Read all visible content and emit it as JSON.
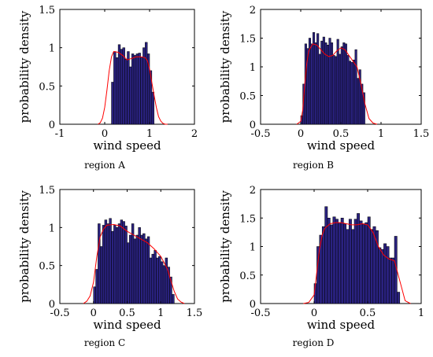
{
  "chart_data": [
    {
      "type": "bar",
      "caption": "region A",
      "xlabel": "wind speed",
      "ylabel": "probability density",
      "xlim": [
        -1,
        2
      ],
      "ylim": [
        0,
        1.5
      ],
      "xticks": [
        "-1",
        "0",
        "1",
        "2"
      ],
      "yticks": [
        "0",
        "0.5",
        "1",
        "1.5"
      ],
      "grid": false,
      "bar_color": "#2a2280",
      "curve_color": "#ff0000",
      "bin_edges": [
        0.15,
        0.2,
        0.25,
        0.3,
        0.35,
        0.4,
        0.45,
        0.5,
        0.55,
        0.6,
        0.65,
        0.7,
        0.75,
        0.8,
        0.85,
        0.9,
        0.95,
        1.0,
        1.05,
        1.1
      ],
      "values": [
        0.55,
        0.95,
        0.87,
        1.04,
        0.98,
        1.0,
        0.85,
        0.95,
        0.75,
        0.92,
        0.9,
        0.92,
        0.93,
        0.88,
        1.0,
        1.07,
        0.92,
        0.7,
        0.42
      ],
      "curve": {
        "x": [
          -0.15,
          -0.1,
          -0.05,
          0.0,
          0.05,
          0.1,
          0.15,
          0.2,
          0.3,
          0.4,
          0.5,
          0.6,
          0.7,
          0.8,
          0.9,
          0.95,
          1.0,
          1.05,
          1.1,
          1.15,
          1.2,
          1.25,
          1.3,
          1.35,
          1.4
        ],
        "y": [
          0.0,
          0.02,
          0.08,
          0.22,
          0.45,
          0.7,
          0.88,
          0.95,
          0.94,
          0.9,
          0.84,
          0.86,
          0.88,
          0.88,
          0.87,
          0.83,
          0.72,
          0.55,
          0.38,
          0.22,
          0.1,
          0.04,
          0.01,
          0.0,
          0.0
        ]
      }
    },
    {
      "type": "bar",
      "caption": "region B",
      "xlabel": "wind speed",
      "ylabel": "probability density",
      "xlim": [
        -0.5,
        1.5
      ],
      "ylim": [
        0,
        2
      ],
      "xticks": [
        "-0.5",
        "0",
        "0.5",
        "1",
        "1.5"
      ],
      "yticks": [
        "0",
        "0.5",
        "1",
        "1.5",
        "2"
      ],
      "grid": false,
      "bar_color": "#2a2280",
      "curve_color": "#ff0000",
      "bin_edges": [
        0.0,
        0.025,
        0.05,
        0.075,
        0.1,
        0.125,
        0.15,
        0.175,
        0.2,
        0.225,
        0.25,
        0.275,
        0.3,
        0.325,
        0.35,
        0.375,
        0.4,
        0.425,
        0.45,
        0.475,
        0.5,
        0.525,
        0.55,
        0.575,
        0.6,
        0.625,
        0.65,
        0.675,
        0.7,
        0.725,
        0.75,
        0.775,
        0.8
      ],
      "values": [
        0.15,
        0.7,
        1.4,
        1.32,
        1.5,
        1.4,
        1.6,
        1.42,
        1.58,
        1.22,
        1.45,
        1.52,
        1.42,
        1.38,
        1.5,
        1.42,
        1.2,
        1.18,
        1.48,
        1.22,
        1.35,
        1.42,
        1.4,
        1.2,
        1.1,
        1.08,
        1.12,
        1.3,
        0.8,
        0.95,
        0.7,
        0.55
      ],
      "curve": {
        "x": [
          -0.05,
          0.0,
          0.025,
          0.05,
          0.075,
          0.1,
          0.15,
          0.2,
          0.25,
          0.3,
          0.35,
          0.4,
          0.45,
          0.5,
          0.55,
          0.6,
          0.65,
          0.7,
          0.75,
          0.8,
          0.85,
          0.9,
          0.95
        ],
        "y": [
          0.0,
          0.05,
          0.25,
          0.7,
          1.05,
          1.28,
          1.4,
          1.38,
          1.3,
          1.22,
          1.18,
          1.2,
          1.28,
          1.33,
          1.3,
          1.2,
          1.1,
          1.0,
          0.7,
          0.35,
          0.1,
          0.02,
          0.0
        ]
      }
    },
    {
      "type": "bar",
      "caption": "region C",
      "xlabel": "wind speed",
      "ylabel": "probability density",
      "xlim": [
        -0.5,
        1.5
      ],
      "ylim": [
        0,
        1.5
      ],
      "xticks": [
        "-0.5",
        "0",
        "0.5",
        "1",
        "1.5"
      ],
      "yticks": [
        "0",
        "0.5",
        "1",
        "1.5"
      ],
      "grid": false,
      "bar_color": "#2a2280",
      "curve_color": "#ff0000",
      "bin_edges": [
        0.0,
        0.033,
        0.066,
        0.1,
        0.133,
        0.166,
        0.2,
        0.233,
        0.266,
        0.3,
        0.333,
        0.366,
        0.4,
        0.433,
        0.466,
        0.5,
        0.533,
        0.566,
        0.6,
        0.633,
        0.666,
        0.7,
        0.733,
        0.766,
        0.8,
        0.833,
        0.866,
        0.9,
        0.933,
        0.966,
        1.0,
        1.033,
        1.066,
        1.1,
        1.133,
        1.166,
        1.2
      ],
      "values": [
        0.22,
        0.45,
        1.05,
        0.75,
        1.03,
        1.1,
        1.05,
        1.12,
        0.95,
        1.03,
        1.0,
        1.05,
        1.1,
        1.08,
        1.02,
        0.8,
        0.9,
        1.05,
        0.85,
        0.9,
        1.0,
        0.9,
        0.92,
        0.85,
        0.88,
        0.6,
        0.65,
        0.7,
        0.6,
        0.62,
        0.55,
        0.5,
        0.6,
        0.48,
        0.35,
        0.12
      ],
      "curve": {
        "x": [
          -0.15,
          -0.1,
          -0.05,
          0.0,
          0.05,
          0.1,
          0.15,
          0.2,
          0.3,
          0.4,
          0.5,
          0.6,
          0.7,
          0.8,
          0.9,
          1.0,
          1.1,
          1.15,
          1.2,
          1.25,
          1.3,
          1.35
        ],
        "y": [
          0.0,
          0.03,
          0.1,
          0.28,
          0.62,
          0.88,
          0.98,
          1.03,
          1.04,
          1.02,
          0.95,
          0.9,
          0.85,
          0.8,
          0.72,
          0.62,
          0.45,
          0.3,
          0.16,
          0.06,
          0.02,
          0.0
        ]
      }
    },
    {
      "type": "bar",
      "caption": "region D",
      "xlabel": "wind speed",
      "ylabel": "probability density",
      "xlim": [
        -0.5,
        1
      ],
      "ylim": [
        0,
        2
      ],
      "xticks": [
        "-0.5",
        "0",
        "0.5",
        "1"
      ],
      "yticks": [
        "0",
        "0.5",
        "1",
        "1.5",
        "2"
      ],
      "grid": false,
      "bar_color": "#2a2280",
      "curve_color": "#ff0000",
      "bin_edges": [
        0.0,
        0.025,
        0.05,
        0.075,
        0.1,
        0.125,
        0.15,
        0.175,
        0.2,
        0.225,
        0.25,
        0.275,
        0.3,
        0.325,
        0.35,
        0.375,
        0.4,
        0.425,
        0.45,
        0.475,
        0.5,
        0.525,
        0.55,
        0.575,
        0.6,
        0.625,
        0.65,
        0.675,
        0.7,
        0.725,
        0.75,
        0.775,
        0.8
      ],
      "values": [
        0.35,
        1.0,
        1.2,
        1.35,
        1.7,
        1.5,
        1.38,
        1.52,
        1.48,
        1.42,
        1.5,
        1.4,
        1.3,
        1.48,
        1.3,
        1.48,
        1.58,
        1.45,
        1.4,
        1.42,
        1.52,
        1.3,
        1.35,
        1.28,
        0.98,
        0.95,
        1.05,
        1.0,
        0.8,
        0.8,
        1.18,
        0.2
      ],
      "curve": {
        "x": [
          -0.1,
          -0.05,
          0.0,
          0.025,
          0.05,
          0.075,
          0.1,
          0.15,
          0.2,
          0.25,
          0.3,
          0.35,
          0.4,
          0.45,
          0.5,
          0.55,
          0.6,
          0.65,
          0.7,
          0.75,
          0.8,
          0.85,
          0.9
        ],
        "y": [
          0.0,
          0.02,
          0.15,
          0.55,
          0.95,
          1.2,
          1.32,
          1.4,
          1.42,
          1.42,
          1.4,
          1.38,
          1.38,
          1.4,
          1.38,
          1.25,
          1.0,
          0.85,
          0.78,
          0.75,
          0.4,
          0.05,
          0.0
        ]
      }
    }
  ]
}
